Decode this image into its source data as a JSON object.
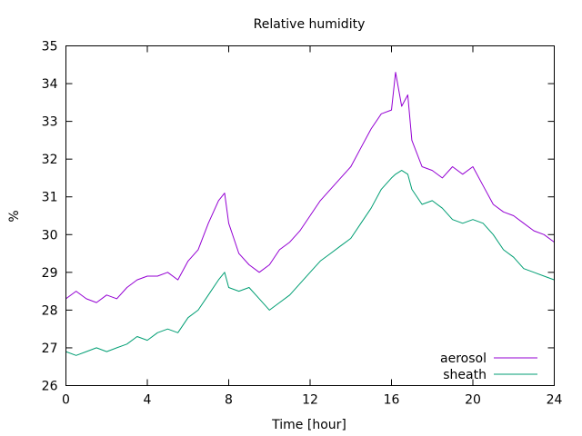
{
  "chart_data": {
    "type": "line",
    "title": "Relative humidity",
    "xlabel": "Time [hour]",
    "ylabel": "%",
    "xlim": [
      0,
      24
    ],
    "ylim": [
      26,
      35
    ],
    "xticks": [
      0,
      4,
      8,
      12,
      16,
      20,
      24
    ],
    "yticks": [
      26,
      27,
      28,
      29,
      30,
      31,
      32,
      33,
      34,
      35
    ],
    "grid": false,
    "legend_position": "bottom-right",
    "series": [
      {
        "name": "aerosol",
        "color": "#9400d3",
        "x": [
          0,
          0.5,
          1,
          1.5,
          2,
          2.5,
          3,
          3.5,
          4,
          4.5,
          5,
          5.5,
          6,
          6.5,
          7,
          7.5,
          7.8,
          8,
          8.5,
          9,
          9.5,
          10,
          10.5,
          11,
          11.5,
          12,
          12.5,
          13,
          13.5,
          14,
          14.5,
          15,
          15.5,
          16,
          16.2,
          16.5,
          16.8,
          17,
          17.5,
          18,
          18.5,
          19,
          19.5,
          20,
          20.5,
          21,
          21.5,
          22,
          22.5,
          23,
          23.5,
          24
        ],
        "y": [
          28.3,
          28.5,
          28.3,
          28.2,
          28.4,
          28.3,
          28.6,
          28.8,
          28.9,
          28.9,
          29.0,
          28.8,
          29.3,
          29.6,
          30.3,
          30.9,
          31.1,
          30.3,
          29.5,
          29.2,
          29.0,
          29.2,
          29.6,
          29.8,
          30.1,
          30.5,
          30.9,
          31.2,
          31.5,
          31.8,
          32.3,
          32.8,
          33.2,
          33.3,
          34.3,
          33.4,
          33.7,
          32.5,
          31.8,
          31.7,
          31.5,
          31.8,
          31.6,
          31.8,
          31.3,
          30.8,
          30.6,
          30.5,
          30.3,
          30.1,
          30.0,
          29.8
        ]
      },
      {
        "name": "sheath",
        "color": "#009e73",
        "x": [
          0,
          0.5,
          1,
          1.5,
          2,
          2.5,
          3,
          3.5,
          4,
          4.5,
          5,
          5.5,
          6,
          6.5,
          7,
          7.5,
          7.8,
          8,
          8.5,
          9,
          9.5,
          10,
          10.5,
          11,
          11.5,
          12,
          12.5,
          13,
          13.5,
          14,
          14.5,
          15,
          15.5,
          16,
          16.2,
          16.5,
          16.8,
          17,
          17.5,
          18,
          18.5,
          19,
          19.5,
          20,
          20.5,
          21,
          21.5,
          22,
          22.5,
          23,
          23.5,
          24
        ],
        "y": [
          26.9,
          26.8,
          26.9,
          27.0,
          26.9,
          27.0,
          27.1,
          27.3,
          27.2,
          27.4,
          27.5,
          27.4,
          27.8,
          28.0,
          28.4,
          28.8,
          29.0,
          28.6,
          28.5,
          28.6,
          28.3,
          28.0,
          28.2,
          28.4,
          28.7,
          29.0,
          29.3,
          29.5,
          29.7,
          29.9,
          30.3,
          30.7,
          31.2,
          31.5,
          31.6,
          31.7,
          31.6,
          31.2,
          30.8,
          30.9,
          30.7,
          30.4,
          30.3,
          30.4,
          30.3,
          30.0,
          29.6,
          29.4,
          29.1,
          29.0,
          28.9,
          28.8
        ]
      }
    ]
  }
}
